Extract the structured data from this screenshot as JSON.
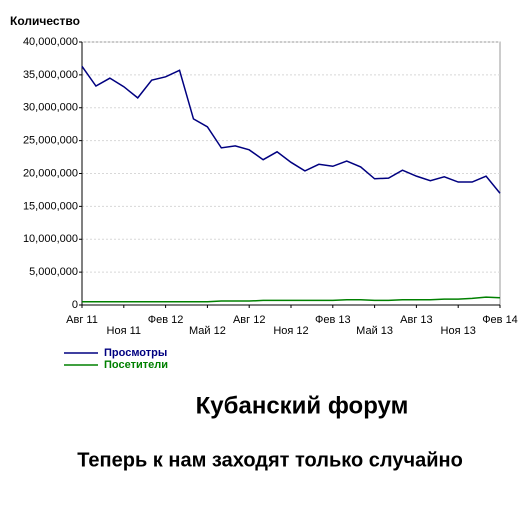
{
  "chart_data": {
    "type": "line",
    "y_label": "Количество",
    "title": "Кубанский форум",
    "subtitle": "Теперь к нам заходят только случайно",
    "categories": [
      "Авг 11",
      null,
      null,
      "Ноя 11",
      null,
      null,
      "Фев 12",
      null,
      null,
      "Май 12",
      null,
      null,
      "Авг 12",
      null,
      null,
      "Ноя 12",
      null,
      null,
      "Фев 13",
      null,
      null,
      "Май 13",
      null,
      null,
      "Авг 13",
      null,
      null,
      "Ноя 13",
      null,
      null,
      "Фев 14"
    ],
    "series": [
      {
        "name": "Просмотры",
        "color": "#000080",
        "values": [
          36300000,
          33300000,
          34500000,
          33200000,
          31500000,
          34200000,
          34700000,
          35700000,
          28300000,
          27100000,
          23900000,
          24200000,
          23600000,
          22100000,
          23300000,
          21700000,
          20400000,
          21400000,
          21100000,
          21900000,
          21000000,
          19200000,
          19300000,
          20500000,
          19600000,
          18900000,
          19500000,
          18700000,
          18700000,
          19600000,
          17000000
        ]
      },
      {
        "name": "Посетители",
        "color": "#008000",
        "values": [
          500000,
          500000,
          500000,
          500000,
          500000,
          500000,
          500000,
          500000,
          500000,
          500000,
          600000,
          600000,
          600000,
          700000,
          700000,
          700000,
          700000,
          700000,
          700000,
          800000,
          800000,
          700000,
          700000,
          800000,
          800000,
          800000,
          900000,
          900000,
          1000000,
          1200000,
          1100000
        ]
      }
    ],
    "ylim": [
      0,
      40000000
    ],
    "yticks": [
      {
        "value": 0,
        "label": "0"
      },
      {
        "value": 5000000,
        "label": "5,000,000"
      },
      {
        "value": 10000000,
        "label": "10,000,000"
      },
      {
        "value": 15000000,
        "label": "15,000,000"
      },
      {
        "value": 20000000,
        "label": "20,000,000"
      },
      {
        "value": 25000000,
        "label": "25,000,000"
      },
      {
        "value": 30000000,
        "label": "30,000,000"
      },
      {
        "value": 35000000,
        "label": "35,000,000"
      },
      {
        "value": 40000000,
        "label": "40,000,000"
      }
    ],
    "grid": true,
    "legend": "bottom-left"
  }
}
